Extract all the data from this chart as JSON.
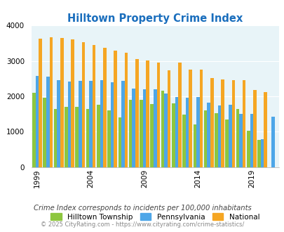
{
  "title": "Hilltown Property Crime Index",
  "title_color": "#1a6ebd",
  "years": [
    1999,
    2000,
    2001,
    2002,
    2003,
    2004,
    2005,
    2006,
    2007,
    2008,
    2009,
    2010,
    2011,
    2012,
    2013,
    2014,
    2015,
    2016,
    2017,
    2018,
    2019,
    2020,
    2021
  ],
  "hilltown": [
    2100,
    1950,
    1650,
    1700,
    1700,
    1650,
    1760,
    1600,
    1400,
    1900,
    1900,
    1780,
    2150,
    1800,
    1480,
    1200,
    1610,
    1520,
    1350,
    1650,
    1020,
    760,
    0
  ],
  "pennsylvania": [
    2580,
    2550,
    2460,
    2420,
    2440,
    2440,
    2450,
    2400,
    2440,
    2210,
    2200,
    2200,
    2080,
    1970,
    1950,
    1970,
    1820,
    1750,
    1760,
    1510,
    1510,
    780,
    1420
  ],
  "national": [
    3620,
    3670,
    3640,
    3600,
    3520,
    3450,
    3380,
    3290,
    3225,
    3050,
    3020,
    2950,
    2740,
    2950,
    2750,
    2760,
    2510,
    2480,
    2460,
    2450,
    2175,
    2110,
    0
  ],
  "hilltown_color": "#8dc63f",
  "pennsylvania_color": "#4da6e8",
  "national_color": "#f5a623",
  "bg_color": "#e8f4f8",
  "note": "Crime Index corresponds to incidents per 100,000 inhabitants",
  "copyright": "© 2025 CityRating.com - https://www.cityrating.com/crime-statistics/",
  "xtick_years": [
    1999,
    2004,
    2009,
    2014,
    2019
  ],
  "ylim": [
    0,
    4000
  ],
  "yticks": [
    0,
    1000,
    2000,
    3000,
    4000
  ]
}
